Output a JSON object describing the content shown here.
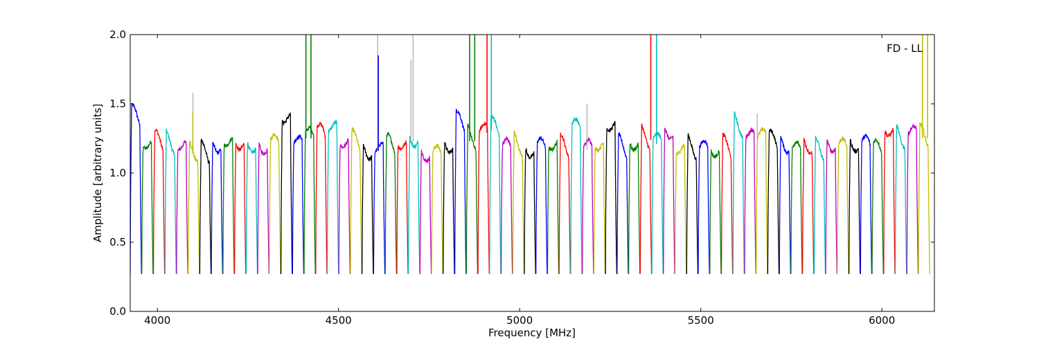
{
  "chart_data": {
    "type": "line",
    "title": "",
    "xlabel": "Frequency [MHz]",
    "ylabel": "Amplitude [arbitrary units]",
    "annotation": "FD - LL",
    "xlim": [
      3925,
      6145
    ],
    "ylim": [
      0.0,
      2.0
    ],
    "xticks": [
      4000,
      4500,
      5000,
      5500,
      6000
    ],
    "yticks": [
      0.0,
      0.5,
      1.0,
      1.5,
      2.0
    ],
    "ytick_labels": [
      "0.0",
      "0.5",
      "1.0",
      "1.5",
      "2.0"
    ],
    "grid": false,
    "colors": [
      "#0000ff",
      "#008000",
      "#ff0000",
      "#00bfbf",
      "#bf00bf",
      "#bfbf00",
      "#000000"
    ],
    "flagged_color": "#bbbbbb",
    "channel_width_mhz": 32,
    "channel_starts_mhz": [
      3925,
      3957,
      3989,
      4021,
      4053,
      4085,
      4117,
      4149,
      4181,
      4213,
      4245,
      4277,
      4309,
      4341,
      4373,
      4405,
      4437,
      4469,
      4501,
      4533,
      4565,
      4597,
      4629,
      4661,
      4693,
      4725,
      4757,
      4789,
      4821,
      4853,
      4885,
      4917,
      4949,
      4981,
      5013,
      5045,
      5077,
      5109,
      5141,
      5173,
      5205,
      5237,
      5269,
      5301,
      5333,
      5365,
      5397,
      5429,
      5461,
      5493,
      5525,
      5557,
      5589,
      5621,
      5653,
      5685,
      5717,
      5749,
      5781,
      5813,
      5845,
      5877,
      5909,
      5941,
      5973,
      6005,
      6037,
      6069,
      6101
    ],
    "channel_peaks": [
      1.44,
      1.25,
      1.26,
      1.25,
      1.23,
      1.2,
      1.18,
      1.24,
      1.26,
      1.25,
      1.24,
      1.23,
      1.25,
      1.43,
      1.25,
      1.3,
      1.32,
      1.36,
      1.26,
      1.26,
      1.2,
      1.21,
      1.23,
      1.25,
      1.28,
      1.18,
      1.17,
      1.24,
      1.4,
      1.28,
      1.34,
      1.36,
      1.22,
      1.25,
      1.2,
      1.22,
      1.24,
      1.23,
      1.36,
      1.22,
      1.24,
      1.38,
      1.22,
      1.25,
      1.29,
      1.26,
      1.34,
      1.2,
      1.22,
      1.21,
      1.2,
      1.22,
      1.38,
      1.3,
      1.3,
      1.26,
      1.25,
      1.2,
      1.24,
      1.2,
      1.25,
      1.22,
      1.25,
      1.24,
      1.2,
      1.35,
      1.3,
      1.32,
      1.3
    ],
    "spikes": [
      {
        "x": 4098,
        "y": 1.58,
        "flagged": true
      },
      {
        "x": 4098,
        "y": 1.44,
        "flagged": false
      },
      {
        "x": 4410,
        "y": 2.0,
        "flagged": false
      },
      {
        "x": 4424,
        "y": 2.0,
        "flagged": false
      },
      {
        "x": 4608,
        "y": 2.0,
        "flagged": true
      },
      {
        "x": 4610,
        "y": 1.85,
        "flagged": false
      },
      {
        "x": 4700,
        "y": 1.82,
        "flagged": true
      },
      {
        "x": 4706,
        "y": 2.0,
        "flagged": true
      },
      {
        "x": 4862,
        "y": 2.0,
        "flagged": false
      },
      {
        "x": 4876,
        "y": 2.0,
        "flagged": false
      },
      {
        "x": 4910,
        "y": 2.0,
        "flagged": false
      },
      {
        "x": 4922,
        "y": 2.0,
        "flagged": false
      },
      {
        "x": 5186,
        "y": 1.5,
        "flagged": true
      },
      {
        "x": 5362,
        "y": 2.0,
        "flagged": false
      },
      {
        "x": 5378,
        "y": 2.0,
        "flagged": false
      },
      {
        "x": 5656,
        "y": 1.43,
        "flagged": true
      },
      {
        "x": 6112,
        "y": 2.0,
        "flagged": false
      },
      {
        "x": 6126,
        "y": 2.0,
        "flagged": false
      }
    ]
  }
}
